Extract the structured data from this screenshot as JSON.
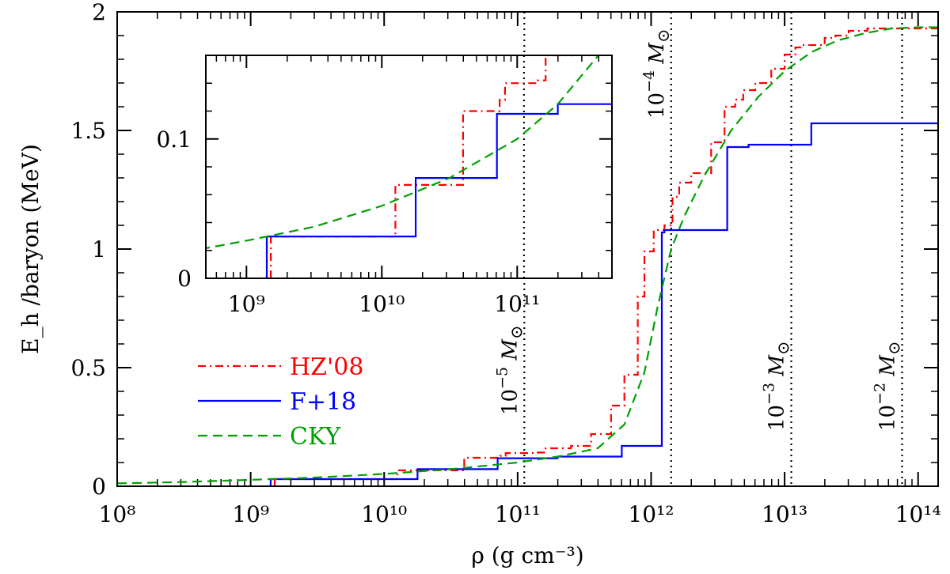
{
  "chart_data": {
    "type": "line",
    "main": {
      "xlabel": "ρ  (g  cm⁻³)",
      "ylabel": "E_h /baryon  (MeV)",
      "xscale": "log",
      "xlim_log10": [
        8,
        14.15
      ],
      "ylim": [
        0,
        2
      ],
      "xtick_log10": [
        8,
        9,
        10,
        11,
        12,
        13,
        14
      ],
      "xtick_labels": [
        "10⁸",
        "10⁹",
        "10¹⁰",
        "10¹¹",
        "10¹²",
        "10¹³",
        "10¹⁴"
      ],
      "ytick_values": [
        0,
        0.5,
        1,
        1.5,
        2
      ],
      "ytick_labels": [
        "0",
        "0.5",
        "1",
        "1.5",
        "2"
      ]
    },
    "inset": {
      "xlim_log10": [
        8.7,
        11.7
      ],
      "ylim": [
        0,
        0.16
      ],
      "xtick_log10": [
        9,
        10,
        11
      ],
      "xtick_labels": [
        "10⁹",
        "10¹⁰",
        "10¹¹"
      ],
      "ytick_values": [
        0,
        0.1
      ],
      "ytick_labels": [
        "0",
        "0.1"
      ]
    },
    "series": [
      {
        "name": "HZ'08",
        "color": "#ff0000",
        "style": "dash-dot",
        "x_log10": [
          9.18,
          9.18,
          10.1,
          10.1,
          10.6,
          10.6,
          10.87,
          10.87,
          10.91,
          10.91,
          11.15,
          11.15,
          11.21,
          11.21,
          11.4,
          11.4,
          11.55,
          11.55,
          11.7,
          11.7,
          11.8,
          11.8,
          11.9,
          11.9,
          11.95,
          11.95,
          12.02,
          12.02,
          12.1,
          12.1,
          12.16,
          12.16,
          12.21,
          12.21,
          12.3,
          12.3,
          12.45,
          12.45,
          12.55,
          12.55,
          12.63,
          12.63,
          12.69,
          12.69,
          12.78,
          12.78,
          12.9,
          12.9,
          13.0,
          13.0,
          13.08,
          13.08,
          13.12,
          13.12,
          13.3,
          13.3,
          13.38,
          13.38,
          13.48,
          13.48,
          13.62,
          13.62,
          14.2
        ],
        "y": [
          0,
          0.03,
          0.03,
          0.067,
          0.067,
          0.12,
          0.12,
          0.128,
          0.128,
          0.14,
          0.14,
          0.142,
          0.142,
          0.16,
          0.16,
          0.17,
          0.17,
          0.22,
          0.22,
          0.34,
          0.34,
          0.47,
          0.47,
          0.8,
          0.8,
          0.99,
          0.99,
          1.08,
          1.08,
          1.1,
          1.1,
          1.22,
          1.22,
          1.28,
          1.28,
          1.32,
          1.32,
          1.45,
          1.45,
          1.6,
          1.6,
          1.63,
          1.63,
          1.67,
          1.67,
          1.7,
          1.7,
          1.76,
          1.76,
          1.82,
          1.82,
          1.85,
          1.85,
          1.86,
          1.86,
          1.89,
          1.89,
          1.9,
          1.9,
          1.92,
          1.92,
          1.93,
          1.93
        ]
      },
      {
        "name": "F+18",
        "color": "#0000ff",
        "style": "solid",
        "x_log10": [
          9.15,
          9.15,
          10.25,
          10.25,
          10.85,
          10.85,
          11.3,
          11.3,
          11.78,
          11.78,
          12.08,
          12.08,
          12.1,
          12.1,
          12.22,
          12.22,
          12.57,
          12.57,
          12.73,
          12.73,
          13.2,
          13.2,
          14.2
        ],
        "y": [
          0,
          0.03,
          0.03,
          0.072,
          0.072,
          0.118,
          0.118,
          0.125,
          0.125,
          0.17,
          0.17,
          1.07,
          1.07,
          1.08,
          1.08,
          1.08,
          1.08,
          1.43,
          1.43,
          1.44,
          1.44,
          1.53,
          1.53
        ]
      },
      {
        "name": "CKY",
        "color": "#00a000",
        "style": "dashed",
        "x_log10": [
          8.0,
          8.5,
          9.0,
          9.5,
          10.0,
          10.5,
          11.0,
          11.3,
          11.6,
          11.8,
          11.95,
          12.05,
          12.15,
          12.25,
          12.4,
          12.6,
          12.8,
          13.0,
          13.2,
          13.4,
          13.6,
          13.8,
          14.0,
          14.2
        ],
        "y": [
          0.012,
          0.018,
          0.027,
          0.037,
          0.052,
          0.072,
          0.1,
          0.125,
          0.16,
          0.26,
          0.48,
          0.76,
          1.0,
          1.14,
          1.31,
          1.5,
          1.64,
          1.75,
          1.83,
          1.88,
          1.91,
          1.93,
          1.935,
          1.935
        ]
      }
    ],
    "mass_markers": [
      {
        "x_log10": 11.05,
        "label_base": "10",
        "label_exp": "−5",
        "label_sym": "M",
        "label_sub": "⊙"
      },
      {
        "x_log10": 12.15,
        "label_base": "10",
        "label_exp": "−4",
        "label_sym": "M",
        "label_sub": "⊙"
      },
      {
        "x_log10": 13.05,
        "label_base": "10",
        "label_exp": "−3",
        "label_sym": "M",
        "label_sub": "⊙"
      },
      {
        "x_log10": 13.88,
        "label_base": "10",
        "label_exp": "−2",
        "label_sym": "M",
        "label_sub": "⊙"
      }
    ],
    "legend": {
      "position": "middle-left",
      "entries": [
        "HZ'08",
        "F+18",
        "CKY"
      ]
    }
  }
}
